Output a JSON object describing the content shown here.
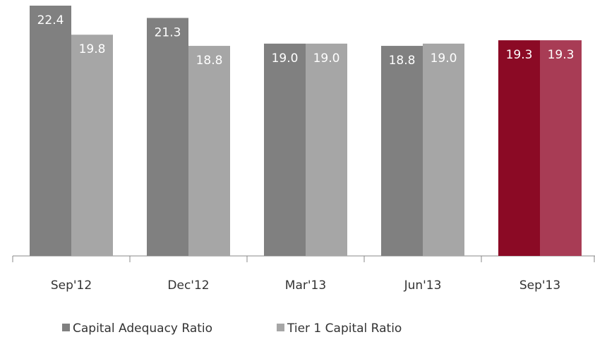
{
  "chart_data": {
    "type": "bar",
    "categories": [
      "Sep'12",
      "Dec'12",
      "Mar'13",
      "Jun'13",
      "Sep'13"
    ],
    "series": [
      {
        "name": "Capital Adequacy Ratio",
        "color": "#808080",
        "point_colors": [
          "#808080",
          "#808080",
          "#808080",
          "#808080",
          "#8b0a25"
        ],
        "values": [
          22.4,
          21.3,
          19.0,
          18.8,
          19.3
        ],
        "value_labels": [
          "22.4",
          "21.3",
          "19.0",
          "18.8",
          "19.3"
        ]
      },
      {
        "name": "Tier 1 Capital Ratio",
        "color": "#a6a6a6",
        "point_colors": [
          "#a6a6a6",
          "#a6a6a6",
          "#a6a6a6",
          "#a6a6a6",
          "#a83c55"
        ],
        "values": [
          19.8,
          18.8,
          19.0,
          19.0,
          19.3
        ],
        "value_labels": [
          "19.8",
          "18.8",
          "19.0",
          "19.0",
          "19.3"
        ]
      }
    ],
    "ylim": [
      0,
      22.4
    ],
    "legend": "bottom"
  }
}
